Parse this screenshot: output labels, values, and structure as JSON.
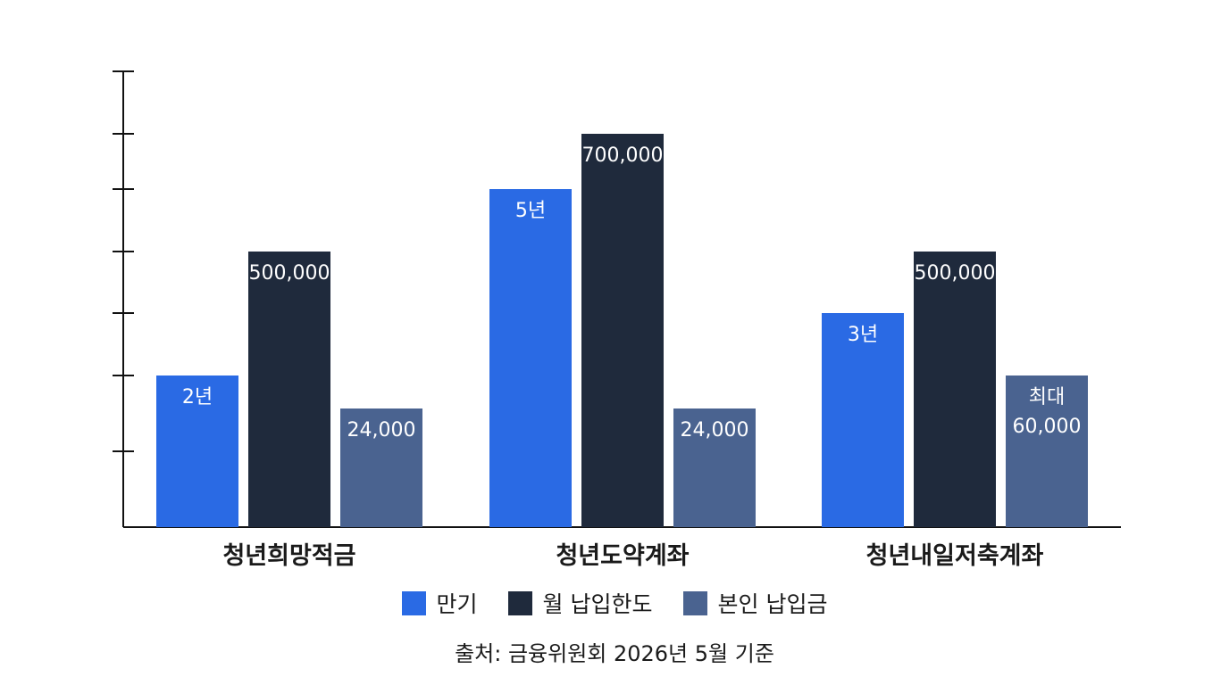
{
  "chart_data": {
    "type": "bar",
    "categories": [
      "청년희망적금",
      "청년도약계좌",
      "청년내일저축계좌"
    ],
    "series": [
      {
        "name": "만기",
        "color": "#2a6ae4",
        "values": [
          2,
          5,
          3
        ],
        "labels": [
          [
            "2년"
          ],
          [
            "5년"
          ],
          [
            "3년"
          ]
        ]
      },
      {
        "name": "월 납입한도",
        "color": "#1f2a3c",
        "values": [
          500000,
          700000,
          500000
        ],
        "labels": [
          [
            "500,000"
          ],
          [
            "700,000"
          ],
          [
            "500,000"
          ]
        ]
      },
      {
        "name": "본인 납입금",
        "color": "#4a6390",
        "values": [
          24000,
          24000,
          60000
        ],
        "labels": [
          [
            "24,000"
          ],
          [
            "24,000"
          ],
          [
            "최대",
            "60,000"
          ]
        ]
      }
    ],
    "y_ticks": 7,
    "grid": false,
    "legend_position": "bottom"
  },
  "source": "출처: 금융위원회 2026년 5월 기준"
}
